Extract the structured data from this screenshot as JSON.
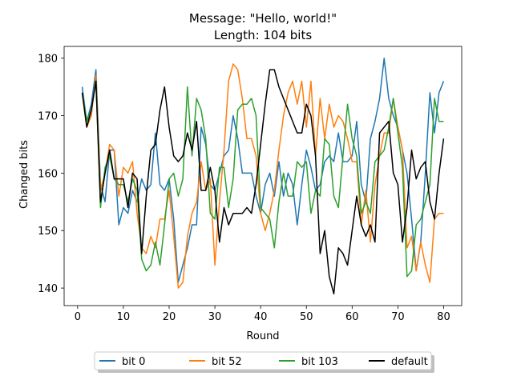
{
  "chart_data": {
    "type": "line",
    "title": "Message: \"Hello, world!\"",
    "subtitle": "Length: 104 bits",
    "xlabel": "Round",
    "ylabel": "Changed bits",
    "xlim": [
      -2.95,
      83.95
    ],
    "ylim": [
      136.95,
      182.05
    ],
    "xticks": [
      0,
      10,
      20,
      30,
      40,
      50,
      60,
      70,
      80
    ],
    "yticks": [
      140,
      150,
      160,
      170,
      180
    ],
    "grid": false,
    "legend_position": "bottom-center",
    "series": [
      {
        "name": "bit 0",
        "color": "#1f77b4",
        "x": [
          1,
          2,
          3,
          4,
          5,
          6,
          7,
          8,
          9,
          10,
          11,
          12,
          13,
          14,
          15,
          16,
          17,
          18,
          19,
          20,
          21,
          22,
          23,
          24,
          25,
          26,
          27,
          28,
          29,
          30,
          31,
          32,
          33,
          34,
          35,
          36,
          37,
          38,
          39,
          40,
          41,
          42,
          43,
          44,
          45,
          46,
          47,
          48,
          49,
          50,
          51,
          52,
          53,
          54,
          55,
          56,
          57,
          58,
          59,
          60,
          61,
          62,
          63,
          64,
          65,
          66,
          67,
          68,
          69,
          70,
          71,
          72,
          73,
          74,
          75,
          76,
          77,
          78,
          79,
          80
        ],
        "values": [
          175,
          169,
          172,
          178,
          158,
          155,
          164,
          164,
          151,
          154,
          153,
          157,
          155,
          159,
          157,
          158,
          167,
          158,
          157,
          159,
          152,
          141,
          144,
          147,
          151,
          151,
          168,
          165,
          158,
          157,
          160,
          163,
          164,
          170,
          166,
          160,
          160,
          160,
          156,
          153,
          158,
          160,
          156,
          162,
          156,
          160,
          158,
          151,
          158,
          164,
          161,
          157,
          158,
          162,
          163,
          162,
          167,
          162,
          162,
          163,
          169,
          158,
          155,
          166,
          169,
          173,
          180,
          173,
          170,
          168,
          164,
          160,
          152,
          143,
          148,
          160,
          174,
          167,
          174,
          176
        ]
      },
      {
        "name": "bit 52",
        "color": "#ff7f0e",
        "x": [
          1,
          2,
          3,
          4,
          5,
          6,
          7,
          8,
          9,
          10,
          11,
          12,
          13,
          14,
          15,
          16,
          17,
          18,
          19,
          20,
          21,
          22,
          23,
          24,
          25,
          26,
          27,
          28,
          29,
          30,
          31,
          32,
          33,
          34,
          35,
          36,
          37,
          38,
          39,
          40,
          41,
          42,
          43,
          44,
          45,
          46,
          47,
          48,
          49,
          50,
          51,
          52,
          53,
          54,
          55,
          56,
          57,
          58,
          59,
          60,
          61,
          62,
          63,
          64,
          65,
          66,
          67,
          68,
          69,
          70,
          71,
          72,
          73,
          74,
          75,
          76,
          77,
          78,
          79,
          80
        ],
        "values": [
          174,
          168,
          170,
          177,
          157,
          160,
          165,
          164,
          156,
          161,
          160,
          162,
          153,
          147,
          146,
          149,
          147,
          152,
          152,
          157,
          149,
          140,
          141,
          149,
          153,
          155,
          162,
          157,
          159,
          144,
          155,
          164,
          176,
          179,
          178,
          173,
          166,
          166,
          163,
          153,
          150,
          153,
          157,
          164,
          170,
          174,
          176,
          172,
          176,
          168,
          176,
          163,
          173,
          166,
          172,
          168,
          170,
          169,
          166,
          162,
          162,
          151,
          157,
          148,
          158,
          163,
          167,
          167,
          173,
          168,
          164,
          147,
          149,
          143,
          148,
          144,
          141,
          152,
          153,
          153
        ]
      },
      {
        "name": "bit 103",
        "color": "#2ca02c",
        "x": [
          1,
          2,
          3,
          4,
          5,
          6,
          7,
          8,
          9,
          10,
          11,
          12,
          13,
          14,
          15,
          16,
          17,
          18,
          19,
          20,
          21,
          22,
          23,
          24,
          25,
          26,
          27,
          28,
          29,
          30,
          31,
          32,
          33,
          34,
          35,
          36,
          37,
          38,
          39,
          40,
          41,
          42,
          43,
          44,
          45,
          46,
          47,
          48,
          49,
          50,
          51,
          52,
          53,
          54,
          55,
          56,
          57,
          58,
          59,
          60,
          61,
          62,
          63,
          64,
          65,
          66,
          67,
          68,
          69,
          70,
          71,
          72,
          73,
          74,
          75,
          76,
          77,
          78,
          79,
          80
        ],
        "values": [
          174,
          169,
          171,
          176,
          154,
          161,
          163,
          159,
          158,
          158,
          155,
          159,
          157,
          145,
          143,
          144,
          148,
          144,
          151,
          159,
          160,
          156,
          159,
          175,
          163,
          173,
          171,
          166,
          153,
          152,
          161,
          161,
          154,
          159,
          171,
          172,
          172,
          173,
          170,
          154,
          153,
          152,
          147,
          155,
          160,
          156,
          156,
          162,
          161,
          162,
          153,
          157,
          156,
          166,
          165,
          156,
          154,
          163,
          172,
          166,
          163,
          153,
          155,
          153,
          162,
          163,
          164,
          168,
          173,
          167,
          161,
          142,
          143,
          151,
          152,
          155,
          158,
          173,
          169,
          169
        ]
      },
      {
        "name": "default",
        "color": "#000000",
        "x": [
          1,
          2,
          3,
          4,
          5,
          6,
          7,
          8,
          9,
          10,
          11,
          12,
          13,
          14,
          15,
          16,
          17,
          18,
          19,
          20,
          21,
          22,
          23,
          24,
          25,
          26,
          27,
          28,
          29,
          30,
          31,
          32,
          33,
          34,
          35,
          36,
          37,
          38,
          39,
          40,
          41,
          42,
          43,
          44,
          45,
          46,
          47,
          48,
          49,
          50,
          51,
          52,
          53,
          54,
          55,
          56,
          57,
          58,
          59,
          60,
          61,
          62,
          63,
          64,
          65,
          66,
          67,
          68,
          69,
          70,
          71,
          72,
          73,
          74,
          75,
          76,
          77,
          78,
          79,
          80
        ],
        "values": [
          174,
          168,
          171,
          176,
          155,
          160,
          164,
          159,
          159,
          159,
          154,
          160,
          159,
          146,
          156,
          164,
          165,
          171,
          175,
          168,
          163,
          162,
          163,
          167,
          164,
          169,
          157,
          157,
          161,
          157,
          148,
          154,
          151,
          153,
          153,
          153,
          154,
          153,
          158,
          165,
          172,
          178,
          178,
          175,
          173,
          171,
          169,
          167,
          167,
          172,
          170,
          163,
          146,
          150,
          142,
          139,
          147,
          146,
          144,
          150,
          156,
          151,
          149,
          151,
          148,
          167,
          168,
          169,
          160,
          158,
          148,
          154,
          164,
          159,
          161,
          162,
          155,
          152,
          160,
          166
        ]
      }
    ]
  }
}
